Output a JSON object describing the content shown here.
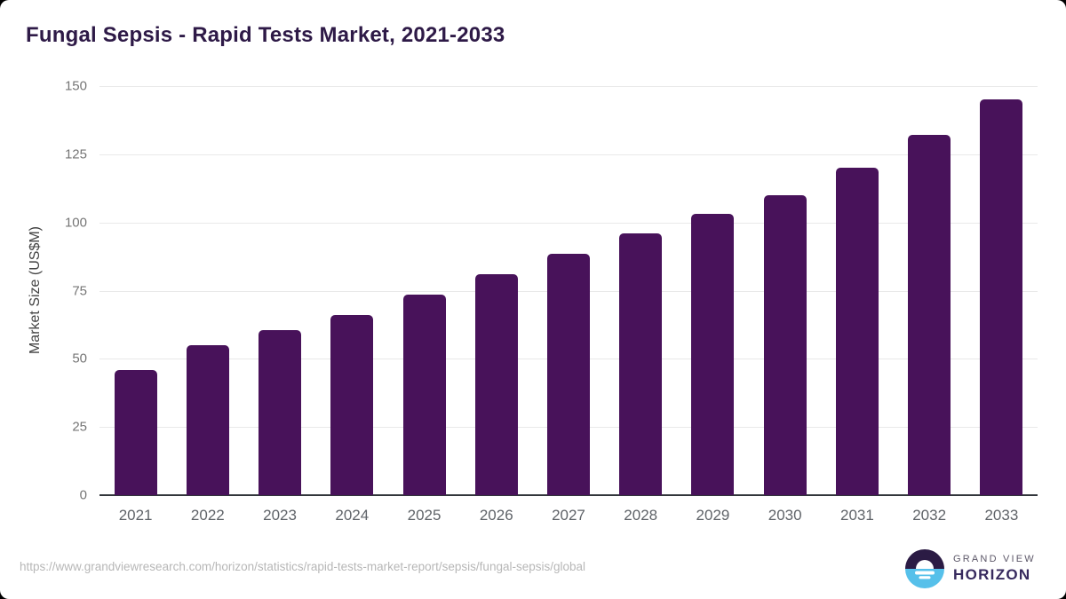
{
  "title": "Fungal Sepsis - Rapid Tests Market, 2021-2033",
  "chart_data": {
    "type": "bar",
    "title": "Fungal Sepsis - Rapid Tests Market, 2021-2033",
    "categories": [
      "2021",
      "2022",
      "2023",
      "2024",
      "2025",
      "2026",
      "2027",
      "2028",
      "2029",
      "2030",
      "2031",
      "2032",
      "2033"
    ],
    "values": [
      46,
      55,
      60.5,
      66,
      73.5,
      81,
      88.5,
      96,
      103,
      110,
      120,
      132,
      145
    ],
    "xlabel": "",
    "ylabel": "Market Size (US$M)",
    "ylim": [
      0,
      150
    ],
    "yticks": [
      0,
      25,
      50,
      75,
      100,
      125,
      150
    ],
    "grid": true,
    "legend_position": "none",
    "bar_color": "#48125a"
  },
  "footer": {
    "source_url": "https://www.grandviewresearch.com/horizon/statistics/rapid-tests-market-report/sepsis/fungal-sepsis/global",
    "logo": {
      "line1": "GRAND VIEW",
      "line2": "HORIZON"
    }
  },
  "colors": {
    "title_text": "#2e1a47",
    "bar": "#48125a",
    "gridline": "#e9e9e9",
    "axis_line": "#32363b",
    "ytick_text": "#757575",
    "xtick_text": "#5f6368",
    "url_text": "#b7b7b7",
    "logo_purple": "#2b1b44",
    "logo_blue": "#56c0ea"
  }
}
